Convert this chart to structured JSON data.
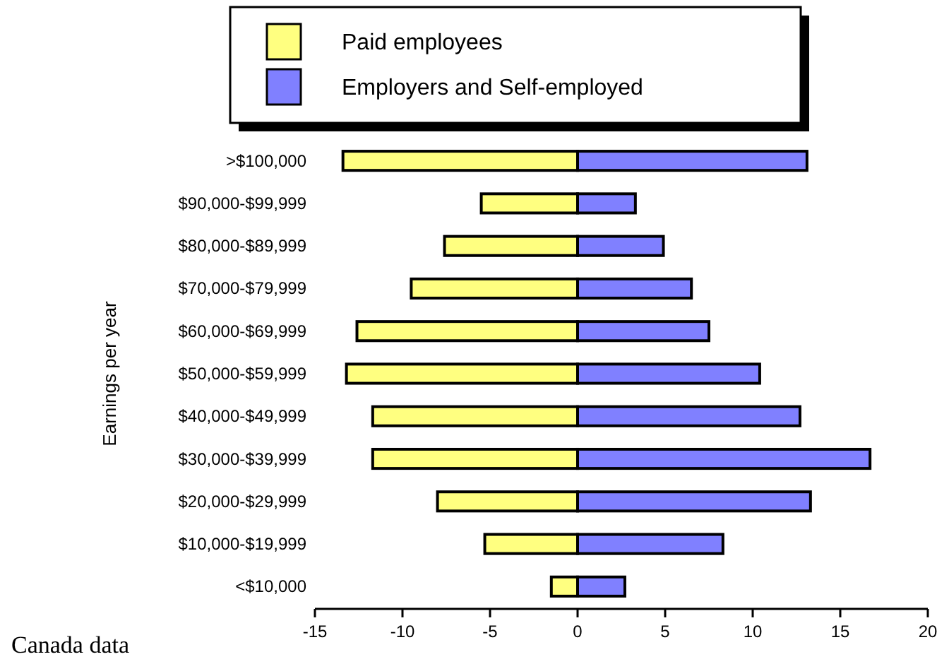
{
  "chart_data": {
    "type": "bar",
    "orientation": "horizontal",
    "stacked": true,
    "categories": [
      ">$100,000",
      "$90,000-$99,999",
      "$80,000-$89,999",
      "$70,000-$79,999",
      "$60,000-$69,999",
      "$50,000-$59,999",
      "$40,000-$49,999",
      "$30,000-$39,999",
      "$20,000-$29,999",
      "$10,000-$19,999",
      "<$10,000"
    ],
    "series": [
      {
        "name": "Paid employees",
        "color": "#ffff80",
        "values": [
          -13.4,
          -5.5,
          -7.6,
          -9.5,
          -12.6,
          -13.2,
          -11.7,
          -11.7,
          -8.0,
          -5.3,
          -1.5
        ]
      },
      {
        "name": "Employers and Self-employed",
        "color": "#8080ff",
        "values": [
          13.1,
          3.3,
          4.9,
          6.5,
          7.5,
          10.4,
          12.7,
          16.7,
          13.3,
          8.3,
          2.7
        ]
      }
    ],
    "xlim": [
      -15,
      20
    ],
    "xticks": [
      -15,
      -10,
      -5,
      0,
      5,
      10,
      15,
      20
    ],
    "ylabel": "Earnings per year",
    "legend": "top",
    "grid": false,
    "annotations": [
      "Canada data"
    ]
  }
}
